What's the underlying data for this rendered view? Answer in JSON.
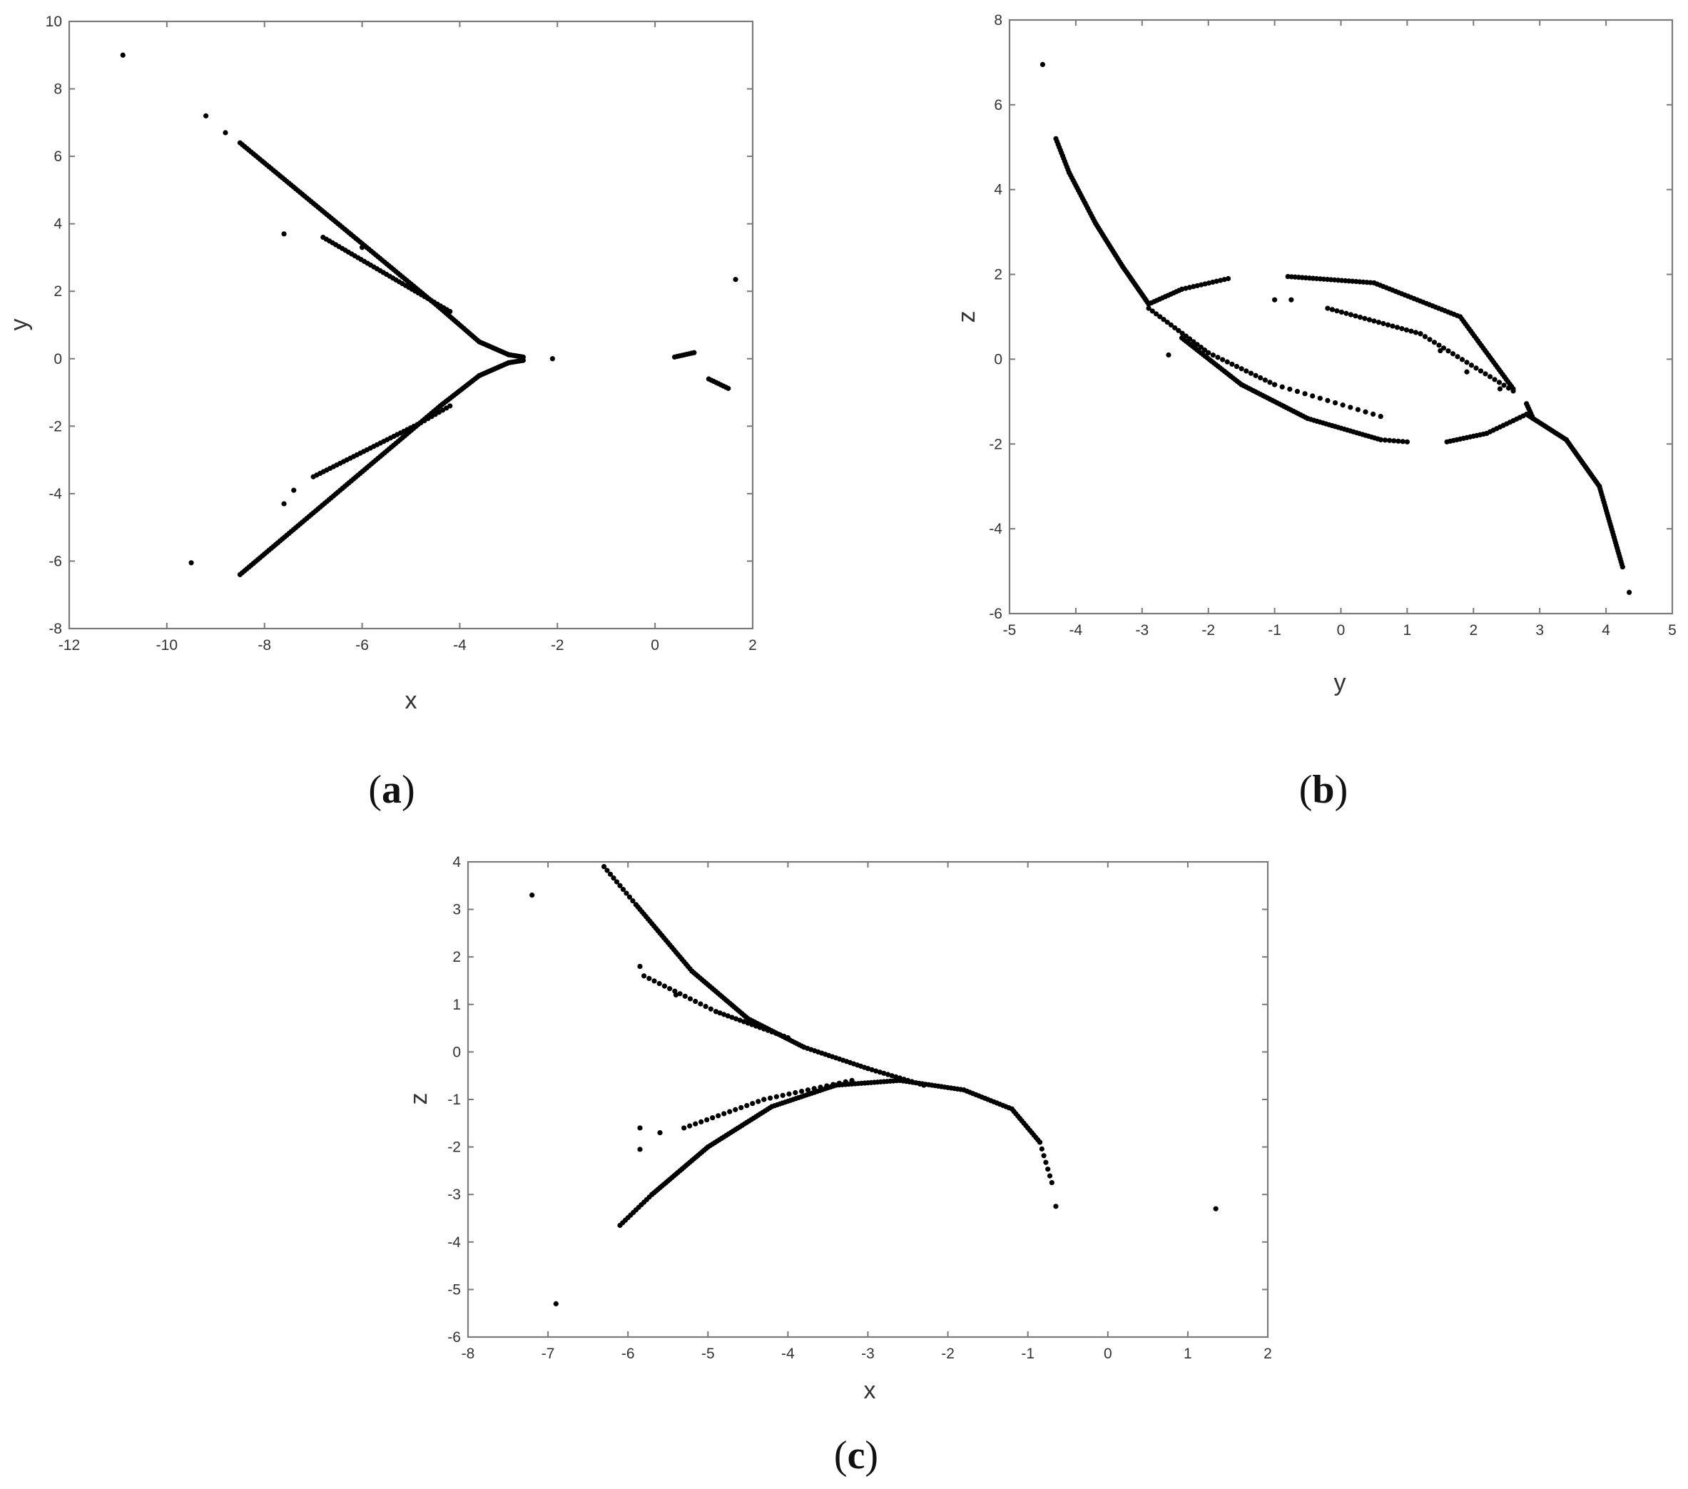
{
  "chart_data": [
    {
      "id": "a",
      "type": "scatter",
      "label": "a",
      "xlabel": "x",
      "ylabel": "y",
      "xlim": [
        -12,
        2
      ],
      "ylim": [
        -8,
        10
      ],
      "xticks": [
        -12,
        -10,
        -8,
        -6,
        -4,
        -2,
        0,
        2
      ],
      "yticks": [
        -8,
        -6,
        -4,
        -2,
        0,
        2,
        4,
        6,
        8,
        10
      ],
      "grid": false,
      "marker_color": "#000000",
      "curves": [
        {
          "from": [
            -8.5,
            6.4
          ],
          "to": [
            -4.4,
            1.5
          ],
          "n": 90
        },
        {
          "from": [
            -4.4,
            1.5
          ],
          "to": [
            -3.6,
            0.5
          ],
          "n": 20
        },
        {
          "from": [
            -3.6,
            0.5
          ],
          "to": [
            -3.0,
            0.12
          ],
          "n": 16
        },
        {
          "from": [
            -3.0,
            0.12
          ],
          "to": [
            -2.7,
            0.05
          ],
          "n": 8
        },
        {
          "from": [
            -8.5,
            -6.4
          ],
          "to": [
            -4.4,
            -1.4
          ],
          "n": 90
        },
        {
          "from": [
            -4.4,
            -1.4
          ],
          "to": [
            -3.6,
            -0.5
          ],
          "n": 20
        },
        {
          "from": [
            -3.6,
            -0.5
          ],
          "to": [
            -3.0,
            -0.12
          ],
          "n": 16
        },
        {
          "from": [
            -3.0,
            -0.12
          ],
          "to": [
            -2.7,
            -0.05
          ],
          "n": 8
        },
        {
          "from": [
            -6.8,
            3.6
          ],
          "to": [
            -4.2,
            1.4
          ],
          "n": 40
        },
        {
          "from": [
            -7.0,
            -3.5
          ],
          "to": [
            -4.8,
            -1.9
          ],
          "n": 32
        },
        {
          "from": [
            -4.8,
            -1.9
          ],
          "to": [
            -4.2,
            -1.4
          ],
          "n": 8
        },
        {
          "from": [
            0.4,
            0.05
          ],
          "to": [
            0.8,
            0.18
          ],
          "n": 8
        },
        {
          "from": [
            1.1,
            -0.6
          ],
          "to": [
            1.5,
            -0.88
          ],
          "n": 8
        }
      ],
      "points": [
        [
          -10.9,
          9.0
        ],
        [
          -9.2,
          7.2
        ],
        [
          -8.8,
          6.7
        ],
        [
          -7.6,
          3.7
        ],
        [
          -9.5,
          -6.05
        ],
        [
          -7.6,
          -4.3
        ],
        [
          -2.1,
          0.0
        ],
        [
          1.65,
          2.35
        ],
        [
          -7.4,
          -3.9
        ],
        [
          -6.0,
          3.3
        ]
      ]
    },
    {
      "id": "b",
      "type": "scatter",
      "label": "b",
      "xlabel": "y",
      "ylabel": "z",
      "xlim": [
        -5,
        5
      ],
      "ylim": [
        -6,
        8
      ],
      "xticks": [
        -5,
        -4,
        -3,
        -2,
        -1,
        0,
        1,
        2,
        3,
        4,
        5
      ],
      "yticks": [
        -6,
        -4,
        -2,
        0,
        2,
        4,
        6,
        8
      ],
      "grid": false,
      "marker_color": "#000000",
      "curves": [
        {
          "from": [
            -4.3,
            5.2
          ],
          "to": [
            -4.1,
            4.4
          ],
          "n": 12
        },
        {
          "from": [
            -4.1,
            4.4
          ],
          "to": [
            -3.7,
            3.2
          ],
          "n": 20
        },
        {
          "from": [
            -3.7,
            3.2
          ],
          "to": [
            -3.3,
            2.2
          ],
          "n": 20
        },
        {
          "from": [
            -3.3,
            2.2
          ],
          "to": [
            -2.9,
            1.3
          ],
          "n": 20
        },
        {
          "from": [
            -2.9,
            1.3
          ],
          "to": [
            -2.4,
            1.65
          ],
          "n": 12
        },
        {
          "from": [
            -2.4,
            1.65
          ],
          "to": [
            -1.7,
            1.9
          ],
          "n": 12
        },
        {
          "from": [
            -0.8,
            1.95
          ],
          "to": [
            0.5,
            1.8
          ],
          "n": 24
        },
        {
          "from": [
            0.5,
            1.8
          ],
          "to": [
            1.8,
            1.0
          ],
          "n": 28
        },
        {
          "from": [
            1.8,
            1.0
          ],
          "to": [
            2.6,
            -0.7
          ],
          "n": 30
        },
        {
          "from": [
            -2.4,
            0.5
          ],
          "to": [
            -1.5,
            -0.6
          ],
          "n": 28
        },
        {
          "from": [
            -1.5,
            -0.6
          ],
          "to": [
            -0.5,
            -1.4
          ],
          "n": 28
        },
        {
          "from": [
            -0.5,
            -1.4
          ],
          "to": [
            0.6,
            -1.9
          ],
          "n": 24
        },
        {
          "from": [
            0.6,
            -1.9
          ],
          "to": [
            1.0,
            -1.95
          ],
          "n": 6
        },
        {
          "from": [
            1.6,
            -1.95
          ],
          "to": [
            2.2,
            -1.75
          ],
          "n": 12
        },
        {
          "from": [
            2.2,
            -1.75
          ],
          "to": [
            2.8,
            -1.3
          ],
          "n": 12
        },
        {
          "from": [
            2.8,
            -1.3
          ],
          "to": [
            3.4,
            -1.9
          ],
          "n": 20
        },
        {
          "from": [
            3.4,
            -1.9
          ],
          "to": [
            3.9,
            -3.0
          ],
          "n": 24
        },
        {
          "from": [
            3.9,
            -3.0
          ],
          "to": [
            4.25,
            -4.9
          ],
          "n": 30
        },
        {
          "from": [
            -2.9,
            1.2
          ],
          "to": [
            -2.0,
            0.15
          ],
          "n": 16
        },
        {
          "from": [
            -2.0,
            0.15
          ],
          "to": [
            -1.0,
            -0.6
          ],
          "n": 14
        },
        {
          "from": [
            -1.0,
            -0.6
          ],
          "to": [
            0.6,
            -1.35
          ],
          "n": 14
        },
        {
          "from": [
            -0.2,
            1.2
          ],
          "to": [
            1.2,
            0.6
          ],
          "n": 20
        },
        {
          "from": [
            1.2,
            0.6
          ],
          "to": [
            2.6,
            -0.75
          ],
          "n": 20
        },
        {
          "from": [
            2.8,
            -1.05
          ],
          "to": [
            2.9,
            -1.4
          ],
          "n": 6
        }
      ],
      "points": [
        [
          -4.5,
          6.95
        ],
        [
          -1.0,
          1.4
        ],
        [
          -0.75,
          1.4
        ],
        [
          1.5,
          0.2
        ],
        [
          1.9,
          -0.3
        ],
        [
          2.4,
          -0.7
        ],
        [
          4.35,
          -5.5
        ],
        [
          -2.2,
          0.3
        ],
        [
          -2.6,
          0.1
        ]
      ]
    },
    {
      "id": "c",
      "type": "scatter",
      "label": "c",
      "xlabel": "x",
      "ylabel": "z",
      "xlim": [
        -8,
        2
      ],
      "ylim": [
        -6,
        4
      ],
      "xticks": [
        -8,
        -7,
        -6,
        -5,
        -4,
        -3,
        -2,
        -1,
        0,
        1,
        2
      ],
      "yticks": [
        -6,
        -5,
        -4,
        -3,
        -2,
        -1,
        0,
        1,
        2,
        3,
        4
      ],
      "grid": false,
      "marker_color": "#000000",
      "curves": [
        {
          "from": [
            -6.3,
            3.9
          ],
          "to": [
            -5.9,
            3.1
          ],
          "n": 10
        },
        {
          "from": [
            -5.9,
            3.1
          ],
          "to": [
            -5.2,
            1.7
          ],
          "n": 28
        },
        {
          "from": [
            -5.2,
            1.7
          ],
          "to": [
            -4.5,
            0.7
          ],
          "n": 28
        },
        {
          "from": [
            -4.5,
            0.7
          ],
          "to": [
            -3.8,
            0.1
          ],
          "n": 24
        },
        {
          "from": [
            -3.8,
            0.1
          ],
          "to": [
            -3.0,
            -0.35
          ],
          "n": 18
        },
        {
          "from": [
            -3.0,
            -0.35
          ],
          "to": [
            -2.3,
            -0.7
          ],
          "n": 14
        },
        {
          "from": [
            -6.1,
            -3.65
          ],
          "to": [
            -5.7,
            -3.0
          ],
          "n": 12
        },
        {
          "from": [
            -5.7,
            -3.0
          ],
          "to": [
            -5.0,
            -2.0
          ],
          "n": 28
        },
        {
          "from": [
            -5.0,
            -2.0
          ],
          "to": [
            -4.2,
            -1.15
          ],
          "n": 28
        },
        {
          "from": [
            -4.2,
            -1.15
          ],
          "to": [
            -3.4,
            -0.7
          ],
          "n": 24
        },
        {
          "from": [
            -3.4,
            -0.7
          ],
          "to": [
            -2.6,
            -0.6
          ],
          "n": 20
        },
        {
          "from": [
            -2.6,
            -0.6
          ],
          "to": [
            -1.8,
            -0.8
          ],
          "n": 20
        },
        {
          "from": [
            -1.8,
            -0.8
          ],
          "to": [
            -1.2,
            -1.2
          ],
          "n": 16
        },
        {
          "from": [
            -1.2,
            -1.2
          ],
          "to": [
            -0.85,
            -1.9
          ],
          "n": 14
        },
        {
          "from": [
            -0.85,
            -1.9
          ],
          "to": [
            -0.7,
            -2.75
          ],
          "n": 6
        },
        {
          "from": [
            -5.8,
            1.6
          ],
          "to": [
            -4.9,
            0.85
          ],
          "n": 14
        },
        {
          "from": [
            -4.9,
            0.85
          ],
          "to": [
            -4.0,
            0.3
          ],
          "n": 18
        },
        {
          "from": [
            -5.3,
            -1.6
          ],
          "to": [
            -4.3,
            -1.0
          ],
          "n": 14
        },
        {
          "from": [
            -4.3,
            -1.0
          ],
          "to": [
            -3.2,
            -0.6
          ],
          "n": 14
        }
      ],
      "points": [
        [
          -7.2,
          3.3
        ],
        [
          -5.85,
          1.8
        ],
        [
          -5.85,
          -1.6
        ],
        [
          -5.85,
          -2.05
        ],
        [
          -5.6,
          -1.7
        ],
        [
          -6.9,
          -5.3
        ],
        [
          -0.65,
          -3.25
        ],
        [
          1.35,
          -3.3
        ],
        [
          -5.4,
          1.2
        ]
      ]
    }
  ]
}
